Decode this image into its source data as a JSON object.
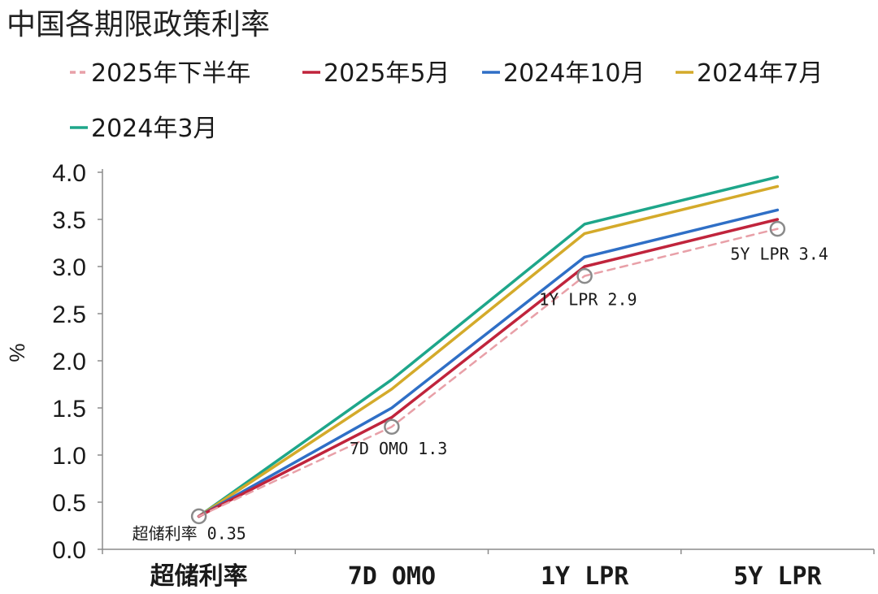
{
  "chart_data": {
    "type": "line",
    "title": "中国各期限政策利率",
    "categories": [
      "超储利率",
      "7D OMO",
      "1Y LPR",
      "5Y LPR"
    ],
    "ylabel": "%",
    "ylim": [
      0,
      4.0
    ],
    "yticks": [
      "0.0",
      "0.5",
      "1.0",
      "1.5",
      "2.0",
      "2.5",
      "3.0",
      "3.5",
      "4.0"
    ],
    "legend_position": "top",
    "series": [
      {
        "name": "2025年下半年",
        "values": [
          0.35,
          1.3,
          2.9,
          3.4
        ],
        "color": "#e8a0a8",
        "dashed": true
      },
      {
        "name": "2025年5月",
        "values": [
          0.35,
          1.4,
          3.0,
          3.5
        ],
        "color": "#c0243c",
        "dashed": false
      },
      {
        "name": "2024年10月",
        "values": [
          0.35,
          1.5,
          3.1,
          3.6
        ],
        "color": "#2f6fc6",
        "dashed": false
      },
      {
        "name": "2024年7月",
        "values": [
          0.35,
          1.7,
          3.35,
          3.85
        ],
        "color": "#d4aa2a",
        "dashed": false
      },
      {
        "name": "2024年3月",
        "values": [
          0.35,
          1.8,
          3.45,
          3.95
        ],
        "color": "#1ea68a",
        "dashed": false
      }
    ],
    "annotations": [
      {
        "label": "超储利率 0.35",
        "category": "超储利率",
        "value": 0.35
      },
      {
        "label": "7D OMO 1.3",
        "category": "7D OMO",
        "value": 1.3
      },
      {
        "label": "1Y LPR 2.9",
        "category": "1Y LPR",
        "value": 2.9
      },
      {
        "label": "5Y LPR 3.4",
        "category": "5Y LPR",
        "value": 3.4
      }
    ]
  }
}
